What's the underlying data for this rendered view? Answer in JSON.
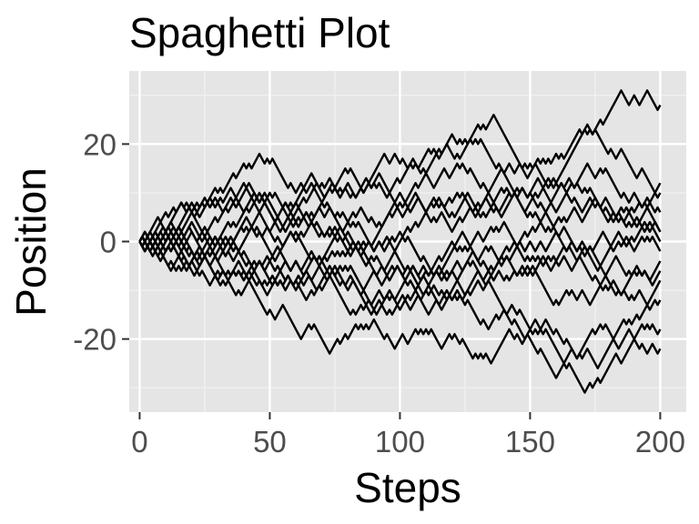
{
  "colors": {
    "panel_background": "#e5e5e5",
    "grid_major": "#ffffff",
    "grid_minor": "#f2f2f2",
    "line": "#000000",
    "tick_label": "#4d4d4d"
  },
  "chart_data": {
    "type": "line",
    "title": "Spaghetti Plot",
    "xlabel": "Steps",
    "ylabel": "Position",
    "xlim": [
      -4,
      210
    ],
    "ylim": [
      -35,
      35
    ],
    "x_ticks": [
      0,
      50,
      100,
      150,
      200
    ],
    "x_tick_labels": [
      "0",
      "50",
      "100",
      "150",
      "200"
    ],
    "y_ticks": [
      -20,
      0,
      20
    ],
    "y_tick_labels": [
      "-20",
      "0",
      "20"
    ],
    "x_minor_ticks": [
      25,
      75,
      125,
      175
    ],
    "y_minor_ticks": [
      -30,
      -10,
      10,
      30
    ],
    "grid": true,
    "legend": "none",
    "steps": 200,
    "series": [
      {
        "x": [
          0,
          25,
          45,
          60,
          80,
          100,
          120,
          135,
          150,
          165,
          180,
          195,
          200
        ],
        "y": [
          0,
          8,
          16,
          10,
          14,
          12,
          18,
          24,
          14,
          20,
          26,
          32,
          27
        ]
      },
      {
        "x": [
          0,
          20,
          40,
          60,
          80,
          100,
          125,
          150,
          170,
          185,
          200
        ],
        "y": [
          0,
          6,
          12,
          8,
          10,
          16,
          20,
          8,
          22,
          18,
          10
        ]
      },
      {
        "x": [
          0,
          20,
          40,
          60,
          80,
          100,
          120,
          140,
          160,
          180,
          200
        ],
        "y": [
          0,
          -4,
          2,
          8,
          4,
          10,
          6,
          14,
          12,
          4,
          11
        ]
      },
      {
        "x": [
          0,
          15,
          35,
          55,
          75,
          100,
          120,
          140,
          160,
          180,
          200
        ],
        "y": [
          0,
          4,
          8,
          2,
          6,
          0,
          8,
          6,
          10,
          6,
          3
        ]
      },
      {
        "x": [
          0,
          20,
          40,
          60,
          80,
          100,
          120,
          140,
          160,
          180,
          200
        ],
        "y": [
          0,
          2,
          6,
          4,
          0,
          6,
          2,
          8,
          4,
          8,
          0
        ]
      },
      {
        "x": [
          0,
          20,
          40,
          60,
          80,
          100,
          120,
          140,
          160,
          180,
          200
        ],
        "y": [
          0,
          -2,
          4,
          0,
          2,
          -4,
          0,
          -2,
          2,
          -2,
          2
        ]
      },
      {
        "x": [
          0,
          20,
          40,
          60,
          80,
          100,
          120,
          140,
          160,
          180,
          200
        ],
        "y": [
          0,
          -4,
          -2,
          2,
          -2,
          -6,
          -2,
          4,
          -4,
          0,
          -2
        ]
      },
      {
        "x": [
          0,
          20,
          40,
          60,
          80,
          100,
          120,
          140,
          160,
          180,
          200
        ],
        "y": [
          0,
          4,
          0,
          -4,
          -2,
          2,
          -6,
          -4,
          2,
          -6,
          -4
        ]
      },
      {
        "x": [
          0,
          20,
          40,
          60,
          80,
          100,
          120,
          140,
          160,
          180,
          200
        ],
        "y": [
          0,
          -6,
          -8,
          -4,
          -10,
          -6,
          -12,
          -8,
          -4,
          -10,
          -8
        ]
      },
      {
        "x": [
          0,
          20,
          40,
          60,
          80,
          100,
          120,
          140,
          160,
          180,
          200
        ],
        "y": [
          0,
          -2,
          -6,
          -10,
          -6,
          -14,
          -10,
          -4,
          -12,
          -8,
          -6
        ]
      },
      {
        "x": [
          0,
          25,
          50,
          70,
          90,
          110,
          130,
          150,
          165,
          180,
          200
        ],
        "y": [
          0,
          -4,
          -10,
          -6,
          -14,
          -10,
          -16,
          -20,
          -24,
          -18,
          -11
        ]
      },
      {
        "x": [
          0,
          20,
          40,
          55,
          70,
          90,
          110,
          130,
          150,
          170,
          185,
          200
        ],
        "y": [
          0,
          -4,
          -10,
          -14,
          -20,
          -16,
          -18,
          -24,
          -18,
          -30,
          -26,
          -23
        ]
      },
      {
        "x": [
          0,
          20,
          40,
          60,
          80,
          100,
          120,
          140,
          160,
          175,
          190,
          200
        ],
        "y": [
          0,
          2,
          -4,
          -8,
          -14,
          -10,
          -6,
          -14,
          -18,
          -24,
          -20,
          -17
        ]
      },
      {
        "x": [
          0,
          20,
          40,
          60,
          80,
          100,
          120,
          140,
          160,
          180,
          200
        ],
        "y": [
          0,
          6,
          10,
          4,
          12,
          8,
          14,
          10,
          6,
          14,
          6
        ]
      }
    ]
  }
}
